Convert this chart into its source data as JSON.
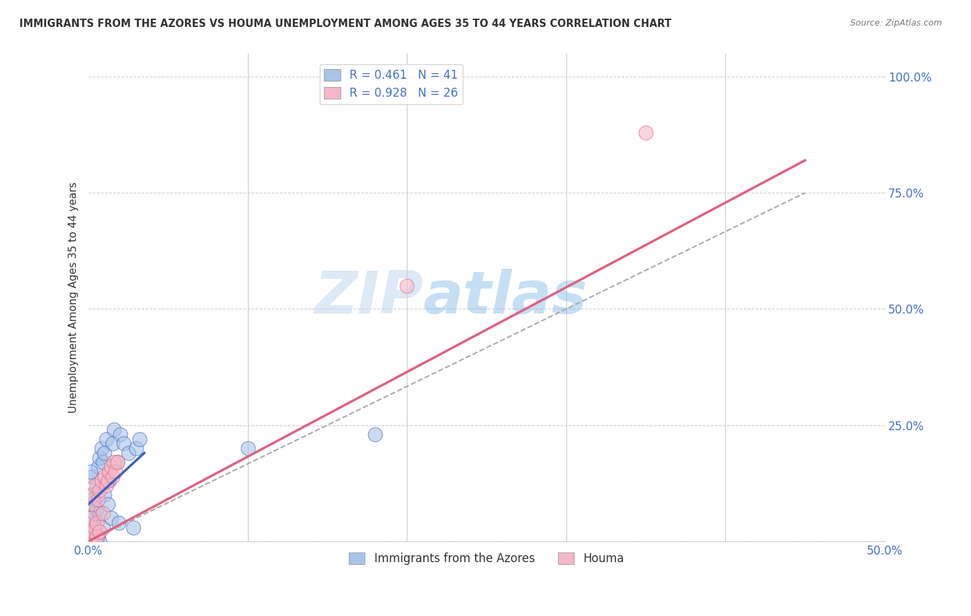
{
  "title": "IMMIGRANTS FROM THE AZORES VS HOUMA UNEMPLOYMENT AMONG AGES 35 TO 44 YEARS CORRELATION CHART",
  "source": "Source: ZipAtlas.com",
  "ylabel": "Unemployment Among Ages 35 to 44 years",
  "xlim": [
    0.0,
    0.5
  ],
  "ylim": [
    0.0,
    1.05
  ],
  "xticks": [
    0.0,
    0.1,
    0.2,
    0.3,
    0.4,
    0.5
  ],
  "xticklabels": [
    "0.0%",
    "",
    "",
    "",
    "",
    "50.0%"
  ],
  "yticks": [
    0.0,
    0.25,
    0.5,
    0.75,
    1.0
  ],
  "yticklabels": [
    "",
    "25.0%",
    "50.0%",
    "75.0%",
    "100.0%"
  ],
  "watermark_zip": "ZIP",
  "watermark_atlas": "atlas",
  "legend_R1": "R = 0.461",
  "legend_N1": "N = 41",
  "legend_R2": "R = 0.928",
  "legend_N2": "N = 26",
  "legend_label1": "Immigrants from the Azores",
  "legend_label2": "Houma",
  "color_blue": "#a8c4e8",
  "color_pink": "#f5b8c8",
  "line_blue": "#4060c0",
  "line_pink": "#e06080",
  "line_dashed": "#aaaaaa",
  "blue_scatter_x": [
    0.001,
    0.001,
    0.002,
    0.002,
    0.002,
    0.003,
    0.003,
    0.003,
    0.003,
    0.004,
    0.004,
    0.005,
    0.005,
    0.005,
    0.006,
    0.006,
    0.007,
    0.007,
    0.007,
    0.008,
    0.009,
    0.009,
    0.01,
    0.01,
    0.011,
    0.012,
    0.013,
    0.014,
    0.015,
    0.016,
    0.018,
    0.019,
    0.02,
    0.022,
    0.025,
    0.028,
    0.03,
    0.032,
    0.1,
    0.18,
    0.001
  ],
  "blue_scatter_y": [
    0.05,
    0.08,
    0.03,
    0.1,
    0.14,
    0.04,
    0.09,
    0.02,
    0.01,
    0.06,
    0.0,
    0.07,
    0.12,
    0.01,
    0.16,
    0.01,
    0.18,
    0.06,
    0.0,
    0.2,
    0.17,
    0.03,
    0.1,
    0.19,
    0.22,
    0.08,
    0.13,
    0.05,
    0.21,
    0.24,
    0.17,
    0.04,
    0.23,
    0.21,
    0.19,
    0.03,
    0.2,
    0.22,
    0.2,
    0.23,
    0.15
  ],
  "pink_scatter_x": [
    0.001,
    0.001,
    0.002,
    0.002,
    0.003,
    0.003,
    0.004,
    0.004,
    0.005,
    0.005,
    0.006,
    0.007,
    0.007,
    0.008,
    0.009,
    0.01,
    0.011,
    0.012,
    0.013,
    0.014,
    0.015,
    0.016,
    0.017,
    0.018,
    0.2,
    0.35
  ],
  "pink_scatter_y": [
    0.01,
    0.05,
    0.0,
    0.08,
    0.02,
    0.1,
    0.03,
    0.12,
    0.04,
    0.01,
    0.09,
    0.11,
    0.02,
    0.13,
    0.06,
    0.14,
    0.12,
    0.13,
    0.15,
    0.16,
    0.14,
    0.17,
    0.15,
    0.17,
    0.55,
    0.88
  ],
  "blue_line_x": [
    0.0,
    0.035
  ],
  "blue_line_y": [
    0.08,
    0.19
  ],
  "pink_line_x": [
    0.0,
    0.45
  ],
  "pink_line_y": [
    0.0,
    0.82
  ],
  "dashed_line_x": [
    0.0,
    0.45
  ],
  "dashed_line_y": [
    0.0,
    0.75
  ]
}
